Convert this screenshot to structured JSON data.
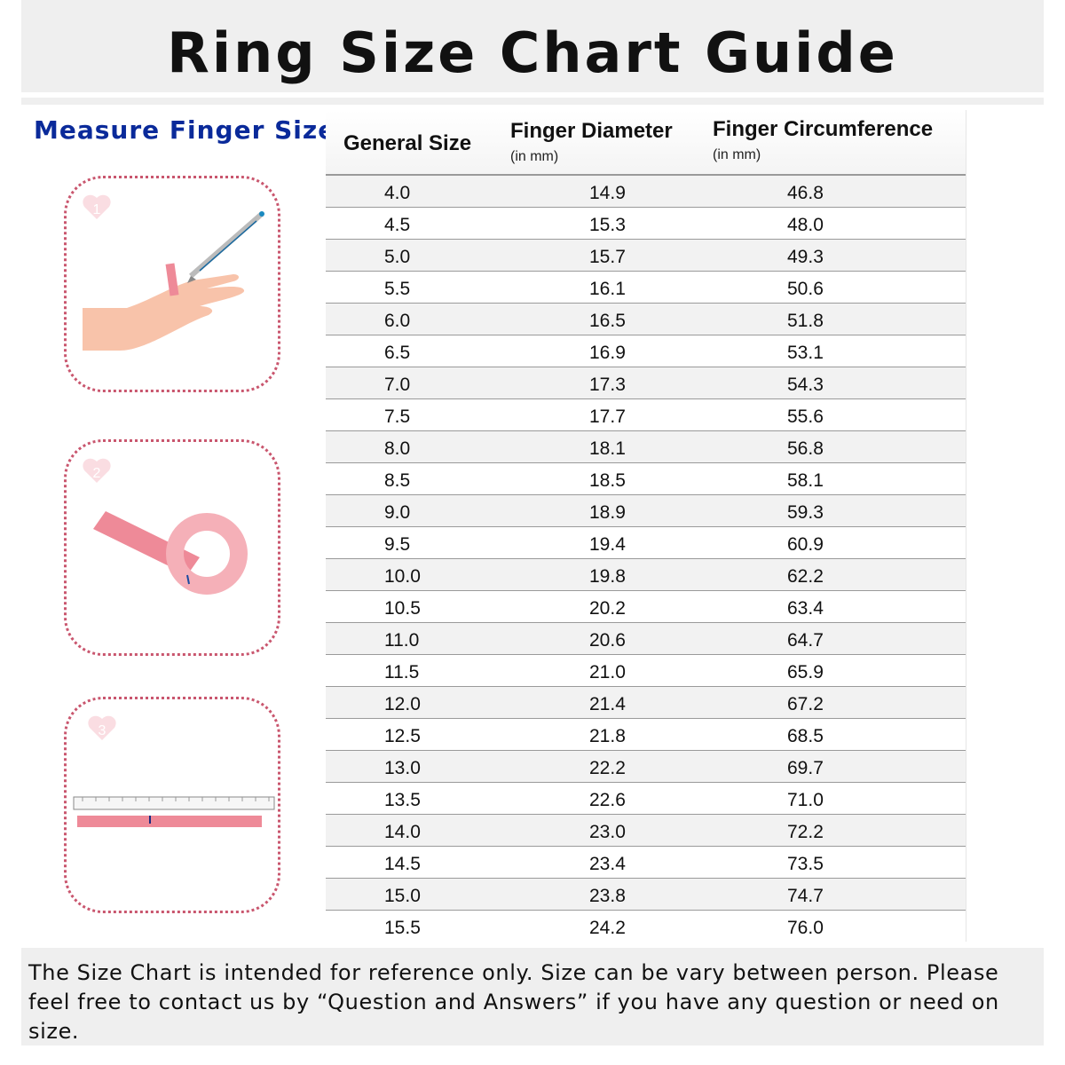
{
  "title": "Ring Size Chart Guide",
  "side_title": "Measure Finger Size",
  "steps": [
    {
      "number": "1"
    },
    {
      "number": "2"
    },
    {
      "number": "3"
    }
  ],
  "table": {
    "headers": [
      {
        "label": "General Size",
        "sub": ""
      },
      {
        "label": "Finger Diameter",
        "sub": "(in mm)"
      },
      {
        "label": "Finger Circumference",
        "sub": "(in mm)"
      }
    ],
    "rows": [
      [
        "4.0",
        "14.9",
        "46.8"
      ],
      [
        "4.5",
        "15.3",
        "48.0"
      ],
      [
        "5.0",
        "15.7",
        "49.3"
      ],
      [
        "5.5",
        "16.1",
        "50.6"
      ],
      [
        "6.0",
        "16.5",
        "51.8"
      ],
      [
        "6.5",
        "16.9",
        "53.1"
      ],
      [
        "7.0",
        "17.3",
        "54.3"
      ],
      [
        "7.5",
        "17.7",
        "55.6"
      ],
      [
        "8.0",
        "18.1",
        "56.8"
      ],
      [
        "8.5",
        "18.5",
        "58.1"
      ],
      [
        "9.0",
        "18.9",
        "59.3"
      ],
      [
        "9.5",
        "19.4",
        "60.9"
      ],
      [
        "10.0",
        "19.8",
        "62.2"
      ],
      [
        "10.5",
        "20.2",
        "63.4"
      ],
      [
        "11.0",
        "20.6",
        "64.7"
      ],
      [
        "11.5",
        "21.0",
        "65.9"
      ],
      [
        "12.0",
        "21.4",
        "67.2"
      ],
      [
        "12.5",
        "21.8",
        "68.5"
      ],
      [
        "13.0",
        "22.2",
        "69.7"
      ],
      [
        "13.5",
        "22.6",
        "71.0"
      ],
      [
        "14.0",
        "23.0",
        "72.2"
      ],
      [
        "14.5",
        "23.4",
        "73.5"
      ],
      [
        "15.0",
        "23.8",
        "74.7"
      ],
      [
        "15.5",
        "24.2",
        "76.0"
      ]
    ]
  },
  "footer": "The Size Chart is intended for reference only. Size can be vary between person. Please feel free to contact us by “Question and Answers” if you have any question or need on size.",
  "colors": {
    "title_band": "#efefef",
    "side_title": "#0a2a9a",
    "panel_border": "#c9566e",
    "strip_pink": "#ee8a98",
    "skin": "#f8c3aa"
  }
}
